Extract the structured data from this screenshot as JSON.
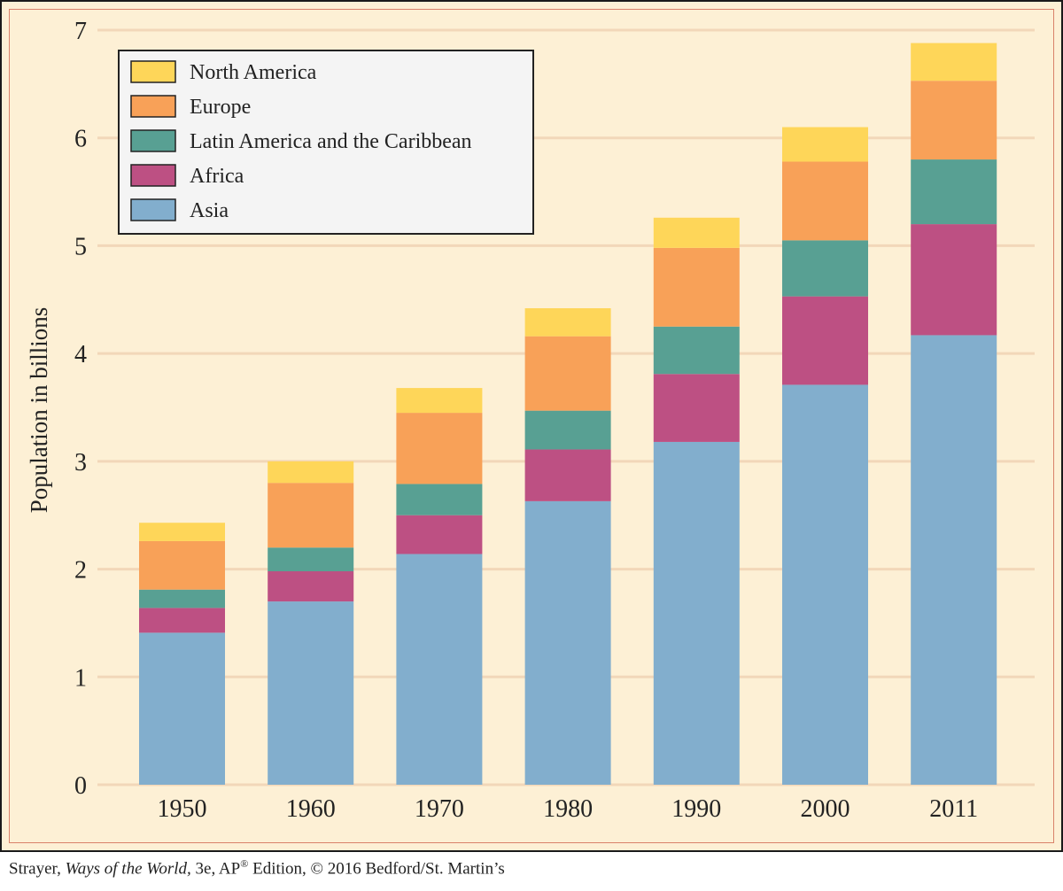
{
  "chart_data": {
    "type": "bar",
    "stacked": true,
    "categories": [
      "1950",
      "1960",
      "1970",
      "1980",
      "1990",
      "2000",
      "2011"
    ],
    "series": [
      {
        "name": "Asia",
        "color": "#82aecd",
        "values": [
          1.41,
          1.7,
          2.14,
          2.63,
          3.18,
          3.71,
          4.17
        ]
      },
      {
        "name": "Africa",
        "color": "#bd5083",
        "values": [
          0.23,
          0.28,
          0.36,
          0.48,
          0.63,
          0.82,
          1.03
        ]
      },
      {
        "name": "Latin America and the Caribbean",
        "color": "#58a093",
        "values": [
          0.17,
          0.22,
          0.29,
          0.36,
          0.44,
          0.52,
          0.6
        ]
      },
      {
        "name": "Europe",
        "color": "#f8a158",
        "values": [
          0.45,
          0.6,
          0.66,
          0.69,
          0.73,
          0.73,
          0.73
        ]
      },
      {
        "name": "North America",
        "color": "#fed659",
        "values": [
          0.17,
          0.2,
          0.23,
          0.26,
          0.28,
          0.32,
          0.35
        ]
      }
    ],
    "legend_order": [
      "North America",
      "Europe",
      "Latin America and the Caribbean",
      "Africa",
      "Asia"
    ],
    "legend_position": "top-left",
    "ylabel": "Population in billions",
    "xlabel": "",
    "ylim": [
      0,
      7
    ],
    "yticks": [
      0,
      1,
      2,
      3,
      4,
      5,
      6,
      7
    ],
    "grid": true,
    "grid_color": "#f2d7b9",
    "background_color": "#fdf0d5"
  },
  "credit": {
    "author": "Strayer,",
    "book_title": "Ways of the World,",
    "edition_pre": "3e, AP",
    "registered_mark": "®",
    "edition_post": " Edition, © 2016 Bedford/St. Martin’s"
  }
}
